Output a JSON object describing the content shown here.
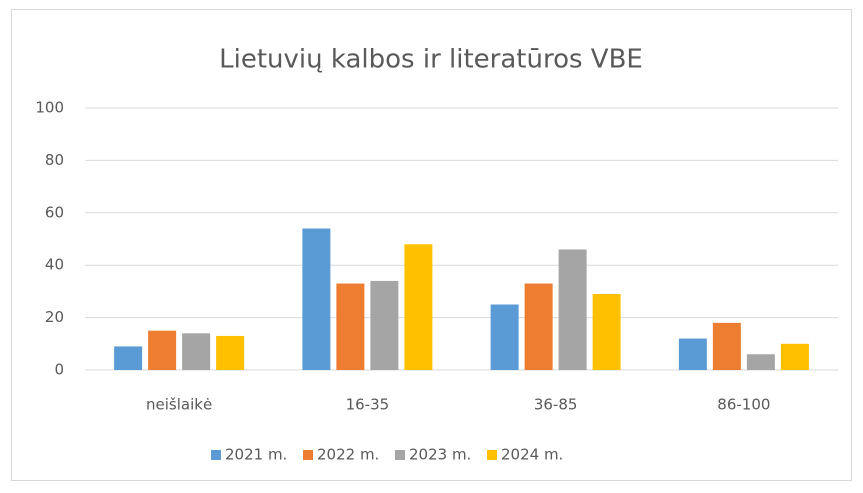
{
  "chart_data": {
    "type": "bar",
    "title": "Lietuvių kalbos ir literatūros VBE",
    "categories": [
      "neišlaikė",
      "16-35",
      "36-85",
      "86-100"
    ],
    "series": [
      {
        "name": "2021 m.",
        "color": "#5b9bd5",
        "values": [
          9,
          54,
          25,
          12
        ]
      },
      {
        "name": "2022 m.",
        "color": "#ed7d31",
        "values": [
          15,
          33,
          33,
          18
        ]
      },
      {
        "name": "2023 m.",
        "color": "#a5a5a5",
        "values": [
          14,
          34,
          46,
          6
        ]
      },
      {
        "name": "2024 m.",
        "color": "#ffc000",
        "values": [
          13,
          48,
          29,
          10
        ]
      }
    ],
    "ylim": [
      0,
      100
    ],
    "yticks": [
      0,
      20,
      40,
      60,
      80,
      100
    ],
    "grid": true,
    "legend": "bottom"
  }
}
